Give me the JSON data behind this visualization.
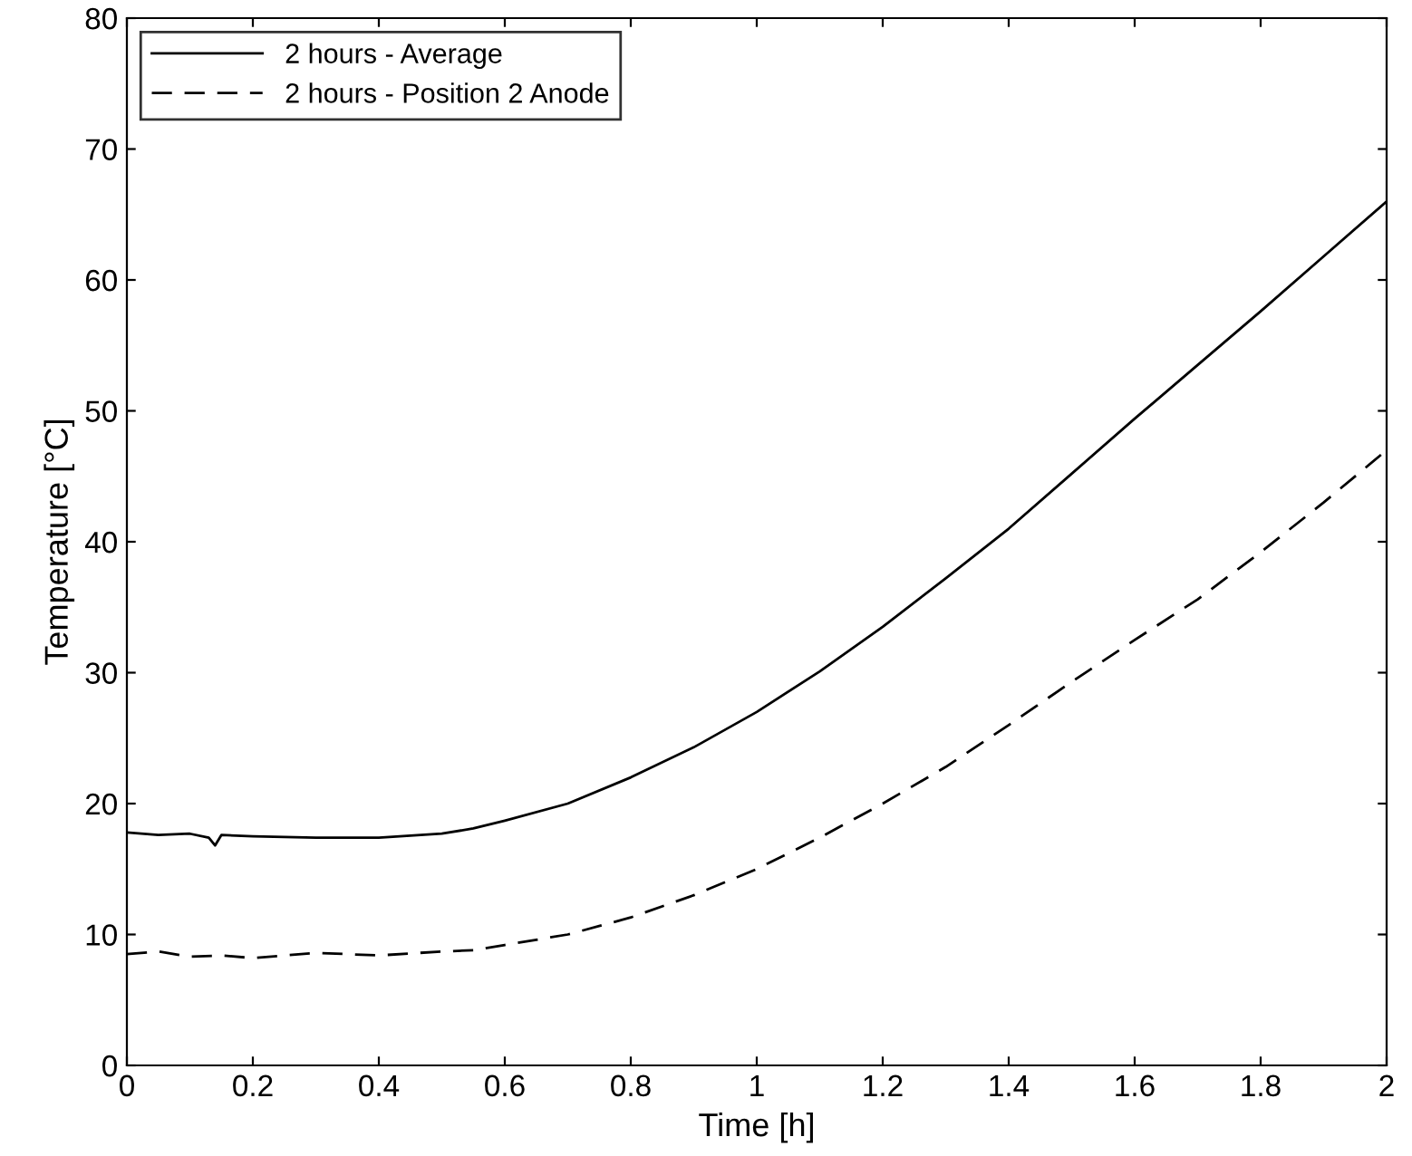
{
  "chart_data": {
    "type": "line",
    "xlabel": "Time [h]",
    "ylabel": "Temperature [°C]",
    "xlim": [
      0,
      2
    ],
    "ylim": [
      0,
      80
    ],
    "xticks": [
      0,
      0.2,
      0.4,
      0.6,
      0.8,
      1,
      1.2,
      1.4,
      1.6,
      1.8,
      2
    ],
    "yticks": [
      0,
      10,
      20,
      30,
      40,
      50,
      60,
      70,
      80
    ],
    "grid": false,
    "legend": "top left",
    "series": [
      {
        "name": "2 hours - Average",
        "color": "#000000",
        "line_style": "solid",
        "x": [
          0,
          0.05,
          0.1,
          0.13,
          0.14,
          0.15,
          0.2,
          0.3,
          0.4,
          0.5,
          0.55,
          0.6,
          0.7,
          0.8,
          0.9,
          1.0,
          1.1,
          1.2,
          1.3,
          1.4,
          1.5,
          1.6,
          1.7,
          1.8,
          1.9,
          2.0
        ],
        "values": [
          17.8,
          17.6,
          17.7,
          17.4,
          16.8,
          17.6,
          17.5,
          17.4,
          17.4,
          17.7,
          18.1,
          18.7,
          20.0,
          22.0,
          24.3,
          27.0,
          30.1,
          33.5,
          37.2,
          41.0,
          45.2,
          49.4,
          53.5,
          57.6,
          61.8,
          66.0
        ]
      },
      {
        "name": "2 hours - Position 2 Anode",
        "color": "#000000",
        "line_style": "dashed",
        "x": [
          0,
          0.05,
          0.1,
          0.15,
          0.2,
          0.3,
          0.4,
          0.5,
          0.55,
          0.6,
          0.7,
          0.8,
          0.9,
          1.0,
          1.1,
          1.2,
          1.3,
          1.4,
          1.5,
          1.6,
          1.7,
          1.8,
          1.9,
          2.0
        ],
        "values": [
          8.5,
          8.7,
          8.3,
          8.4,
          8.2,
          8.6,
          8.4,
          8.7,
          8.8,
          9.2,
          10.0,
          11.3,
          13.0,
          15.0,
          17.4,
          20.0,
          22.8,
          26.0,
          29.3,
          32.5,
          35.6,
          39.2,
          43.0,
          47.0
        ]
      }
    ]
  }
}
